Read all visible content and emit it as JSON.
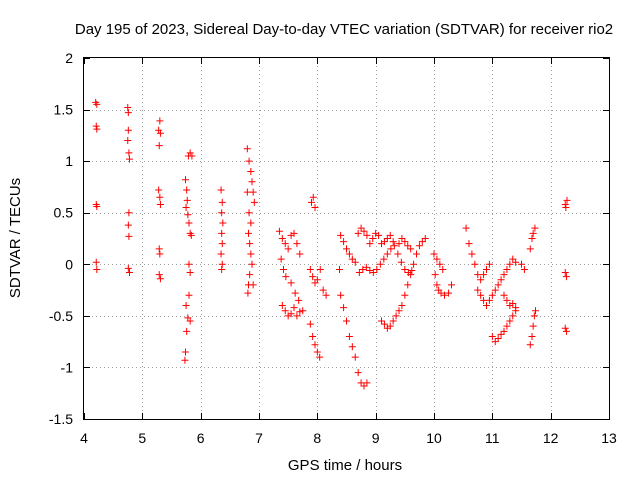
{
  "chart_data": {
    "type": "scatter",
    "title": "Day 195 of 2023, Sidereal Day-to-day VTEC variation (SDTVAR) for receiver rio2",
    "xlabel": "GPS time / hours",
    "ylabel": "SDTVAR / TECUs",
    "xlim": [
      4,
      13
    ],
    "ylim": [
      -1.5,
      2
    ],
    "xticks": [
      "4",
      "5",
      "6",
      "7",
      "8",
      "9",
      "10",
      "11",
      "12",
      "13"
    ],
    "yticks": [
      "-1.5",
      "-1",
      "-0.5",
      "0",
      "0.5",
      "1",
      "1.5",
      "2"
    ],
    "grid": true,
    "marker": "+",
    "colors": {
      "series": "#ff0000",
      "grid": "#a0a0a0",
      "axis": "#000000"
    },
    "series": [
      {
        "name": "SDTVAR",
        "points": [
          [
            4.2,
            1.57
          ],
          [
            4.22,
            1.55
          ],
          [
            4.21,
            1.34
          ],
          [
            4.22,
            1.31
          ],
          [
            4.21,
            0.58
          ],
          [
            4.22,
            0.56
          ],
          [
            4.21,
            0.02
          ],
          [
            4.22,
            -0.05
          ],
          [
            4.75,
            1.52
          ],
          [
            4.76,
            1.47
          ],
          [
            4.76,
            1.3
          ],
          [
            4.75,
            1.2
          ],
          [
            4.77,
            1.08
          ],
          [
            4.78,
            1.02
          ],
          [
            4.77,
            0.5
          ],
          [
            4.76,
            0.38
          ],
          [
            4.77,
            0.27
          ],
          [
            4.76,
            -0.04
          ],
          [
            4.78,
            -0.08
          ],
          [
            5.3,
            1.39
          ],
          [
            5.28,
            1.3
          ],
          [
            5.31,
            1.27
          ],
          [
            5.29,
            1.15
          ],
          [
            5.28,
            0.72
          ],
          [
            5.3,
            0.65
          ],
          [
            5.31,
            0.58
          ],
          [
            5.29,
            0.15
          ],
          [
            5.3,
            0.1
          ],
          [
            5.29,
            -0.1
          ],
          [
            5.31,
            -0.14
          ],
          [
            5.74,
            0.82
          ],
          [
            5.76,
            0.72
          ],
          [
            5.77,
            0.62
          ],
          [
            5.75,
            0.55
          ],
          [
            5.78,
            0.48
          ],
          [
            5.8,
            0.4
          ],
          [
            5.82,
            0.3
          ],
          [
            5.84,
            0.28
          ],
          [
            5.79,
            1.05
          ],
          [
            5.82,
            1.08
          ],
          [
            5.85,
            1.05
          ],
          [
            5.8,
            0.0
          ],
          [
            5.82,
            -0.08
          ],
          [
            5.75,
            -0.4
          ],
          [
            5.78,
            -0.52
          ],
          [
            5.76,
            -0.65
          ],
          [
            5.74,
            -0.85
          ],
          [
            5.73,
            -0.93
          ],
          [
            5.8,
            -0.3
          ],
          [
            5.82,
            -0.55
          ],
          [
            6.35,
            0.72
          ],
          [
            6.37,
            0.6
          ],
          [
            6.36,
            0.5
          ],
          [
            6.38,
            0.4
          ],
          [
            6.36,
            0.3
          ],
          [
            6.37,
            0.2
          ],
          [
            6.35,
            0.1
          ],
          [
            6.37,
            0.0
          ],
          [
            6.36,
            -0.05
          ],
          [
            6.8,
            1.12
          ],
          [
            6.83,
            1.0
          ],
          [
            6.86,
            0.9
          ],
          [
            6.88,
            0.8
          ],
          [
            6.9,
            0.7
          ],
          [
            6.92,
            0.6
          ],
          [
            6.8,
            0.7
          ],
          [
            6.83,
            0.5
          ],
          [
            6.86,
            0.4
          ],
          [
            6.82,
            0.3
          ],
          [
            6.84,
            0.2
          ],
          [
            6.86,
            0.1
          ],
          [
            6.88,
            0.0
          ],
          [
            6.84,
            -0.1
          ],
          [
            6.82,
            -0.2
          ],
          [
            6.81,
            -0.28
          ],
          [
            6.9,
            -0.2
          ],
          [
            7.35,
            0.32
          ],
          [
            7.4,
            0.25
          ],
          [
            7.45,
            0.2
          ],
          [
            7.5,
            0.15
          ],
          [
            7.55,
            0.28
          ],
          [
            7.6,
            0.3
          ],
          [
            7.65,
            0.2
          ],
          [
            7.7,
            0.1
          ],
          [
            7.38,
            0.05
          ],
          [
            7.42,
            -0.05
          ],
          [
            7.46,
            -0.12
          ],
          [
            7.55,
            -0.18
          ],
          [
            7.62,
            -0.28
          ],
          [
            7.68,
            -0.35
          ],
          [
            7.4,
            -0.4
          ],
          [
            7.45,
            -0.45
          ],
          [
            7.5,
            -0.5
          ],
          [
            7.55,
            -0.48
          ],
          [
            7.6,
            -0.42
          ],
          [
            7.65,
            -0.5
          ],
          [
            7.7,
            -0.46
          ],
          [
            7.75,
            -0.45
          ],
          [
            7.9,
            0.6
          ],
          [
            7.93,
            0.65
          ],
          [
            7.96,
            0.55
          ],
          [
            7.88,
            -0.05
          ],
          [
            7.92,
            -0.12
          ],
          [
            7.96,
            -0.18
          ],
          [
            8.0,
            -0.15
          ],
          [
            8.05,
            -0.05
          ],
          [
            8.1,
            -0.25
          ],
          [
            8.15,
            -0.3
          ],
          [
            7.88,
            -0.58
          ],
          [
            7.92,
            -0.7
          ],
          [
            7.96,
            -0.78
          ],
          [
            8.0,
            -0.85
          ],
          [
            8.04,
            -0.9
          ],
          [
            8.4,
            0.28
          ],
          [
            8.45,
            0.22
          ],
          [
            8.5,
            0.15
          ],
          [
            8.55,
            0.1
          ],
          [
            8.6,
            0.05
          ],
          [
            8.65,
            0.02
          ],
          [
            8.38,
            -0.05
          ],
          [
            8.4,
            -0.3
          ],
          [
            8.45,
            -0.42
          ],
          [
            8.5,
            -0.55
          ],
          [
            8.55,
            -0.7
          ],
          [
            8.6,
            -0.8
          ],
          [
            8.65,
            -0.9
          ],
          [
            8.7,
            -1.05
          ],
          [
            8.75,
            -1.15
          ],
          [
            8.8,
            -1.18
          ],
          [
            8.85,
            -1.15
          ],
          [
            8.7,
            0.3
          ],
          [
            8.75,
            0.35
          ],
          [
            8.8,
            0.32
          ],
          [
            8.85,
            0.28
          ],
          [
            8.9,
            0.2
          ],
          [
            8.95,
            0.25
          ],
          [
            9.0,
            0.3
          ],
          [
            9.05,
            0.28
          ],
          [
            9.1,
            0.2
          ],
          [
            9.15,
            0.22
          ],
          [
            9.2,
            0.25
          ],
          [
            9.25,
            0.28
          ],
          [
            9.3,
            0.22
          ],
          [
            8.72,
            -0.08
          ],
          [
            8.78,
            -0.05
          ],
          [
            8.84,
            -0.03
          ],
          [
            8.9,
            -0.06
          ],
          [
            8.96,
            -0.08
          ],
          [
            9.02,
            -0.05
          ],
          [
            9.08,
            0.0
          ],
          [
            9.14,
            0.05
          ],
          [
            9.2,
            0.1
          ],
          [
            9.26,
            0.15
          ],
          [
            9.32,
            0.18
          ],
          [
            9.38,
            0.1
          ],
          [
            9.44,
            0.02
          ],
          [
            9.5,
            -0.05
          ],
          [
            9.56,
            -0.08
          ],
          [
            9.62,
            -0.06
          ],
          [
            9.1,
            -0.55
          ],
          [
            9.15,
            -0.58
          ],
          [
            9.2,
            -0.62
          ],
          [
            9.25,
            -0.6
          ],
          [
            9.3,
            -0.55
          ],
          [
            9.35,
            -0.5
          ],
          [
            9.4,
            -0.45
          ],
          [
            9.45,
            -0.4
          ],
          [
            9.5,
            -0.3
          ],
          [
            9.55,
            -0.2
          ],
          [
            9.6,
            -0.1
          ],
          [
            9.65,
            0.0
          ],
          [
            9.7,
            0.1
          ],
          [
            9.75,
            0.18
          ],
          [
            9.8,
            0.22
          ],
          [
            9.85,
            0.25
          ],
          [
            9.4,
            0.2
          ],
          [
            9.45,
            0.25
          ],
          [
            9.5,
            0.22
          ],
          [
            9.55,
            0.18
          ],
          [
            9.6,
            0.15
          ],
          [
            10.0,
            0.1
          ],
          [
            10.05,
            0.05
          ],
          [
            10.1,
            0.0
          ],
          [
            10.15,
            -0.05
          ],
          [
            10.02,
            -0.1
          ],
          [
            10.05,
            -0.2
          ],
          [
            10.08,
            -0.25
          ],
          [
            10.12,
            -0.28
          ],
          [
            10.18,
            -0.3
          ],
          [
            10.25,
            -0.28
          ],
          [
            10.3,
            -0.2
          ],
          [
            10.55,
            0.35
          ],
          [
            10.6,
            0.2
          ],
          [
            10.65,
            0.1
          ],
          [
            10.7,
            0.0
          ],
          [
            10.75,
            -0.1
          ],
          [
            10.8,
            -0.15
          ],
          [
            10.85,
            -0.1
          ],
          [
            10.9,
            -0.05
          ],
          [
            10.95,
            0.0
          ],
          [
            10.75,
            -0.25
          ],
          [
            10.8,
            -0.3
          ],
          [
            10.85,
            -0.35
          ],
          [
            10.9,
            -0.4
          ],
          [
            10.95,
            -0.35
          ],
          [
            11.0,
            -0.3
          ],
          [
            11.05,
            -0.25
          ],
          [
            11.1,
            -0.2
          ],
          [
            11.15,
            -0.15
          ],
          [
            11.2,
            -0.1
          ],
          [
            11.25,
            -0.05
          ],
          [
            11.3,
            0.0
          ],
          [
            11.35,
            0.05
          ],
          [
            11.4,
            0.02
          ],
          [
            11.0,
            -0.7
          ],
          [
            11.05,
            -0.75
          ],
          [
            11.1,
            -0.72
          ],
          [
            11.15,
            -0.68
          ],
          [
            11.2,
            -0.65
          ],
          [
            11.25,
            -0.6
          ],
          [
            11.3,
            -0.55
          ],
          [
            11.35,
            -0.5
          ],
          [
            11.4,
            -0.45
          ],
          [
            11.2,
            -0.3
          ],
          [
            11.25,
            -0.35
          ],
          [
            11.3,
            -0.4
          ],
          [
            11.35,
            -0.38
          ],
          [
            11.4,
            -0.42
          ],
          [
            11.5,
            0.0
          ],
          [
            11.55,
            -0.05
          ],
          [
            11.65,
            -0.78
          ],
          [
            11.68,
            -0.7
          ],
          [
            11.7,
            -0.6
          ],
          [
            11.72,
            -0.5
          ],
          [
            11.74,
            -0.45
          ],
          [
            11.65,
            0.15
          ],
          [
            11.68,
            0.25
          ],
          [
            11.7,
            0.3
          ],
          [
            11.73,
            0.35
          ],
          [
            12.25,
            0.58
          ],
          [
            12.28,
            0.62
          ],
          [
            12.26,
            0.55
          ],
          [
            12.25,
            -0.08
          ],
          [
            12.27,
            -0.12
          ],
          [
            12.25,
            -0.62
          ],
          [
            12.27,
            -0.65
          ]
        ]
      }
    ]
  }
}
